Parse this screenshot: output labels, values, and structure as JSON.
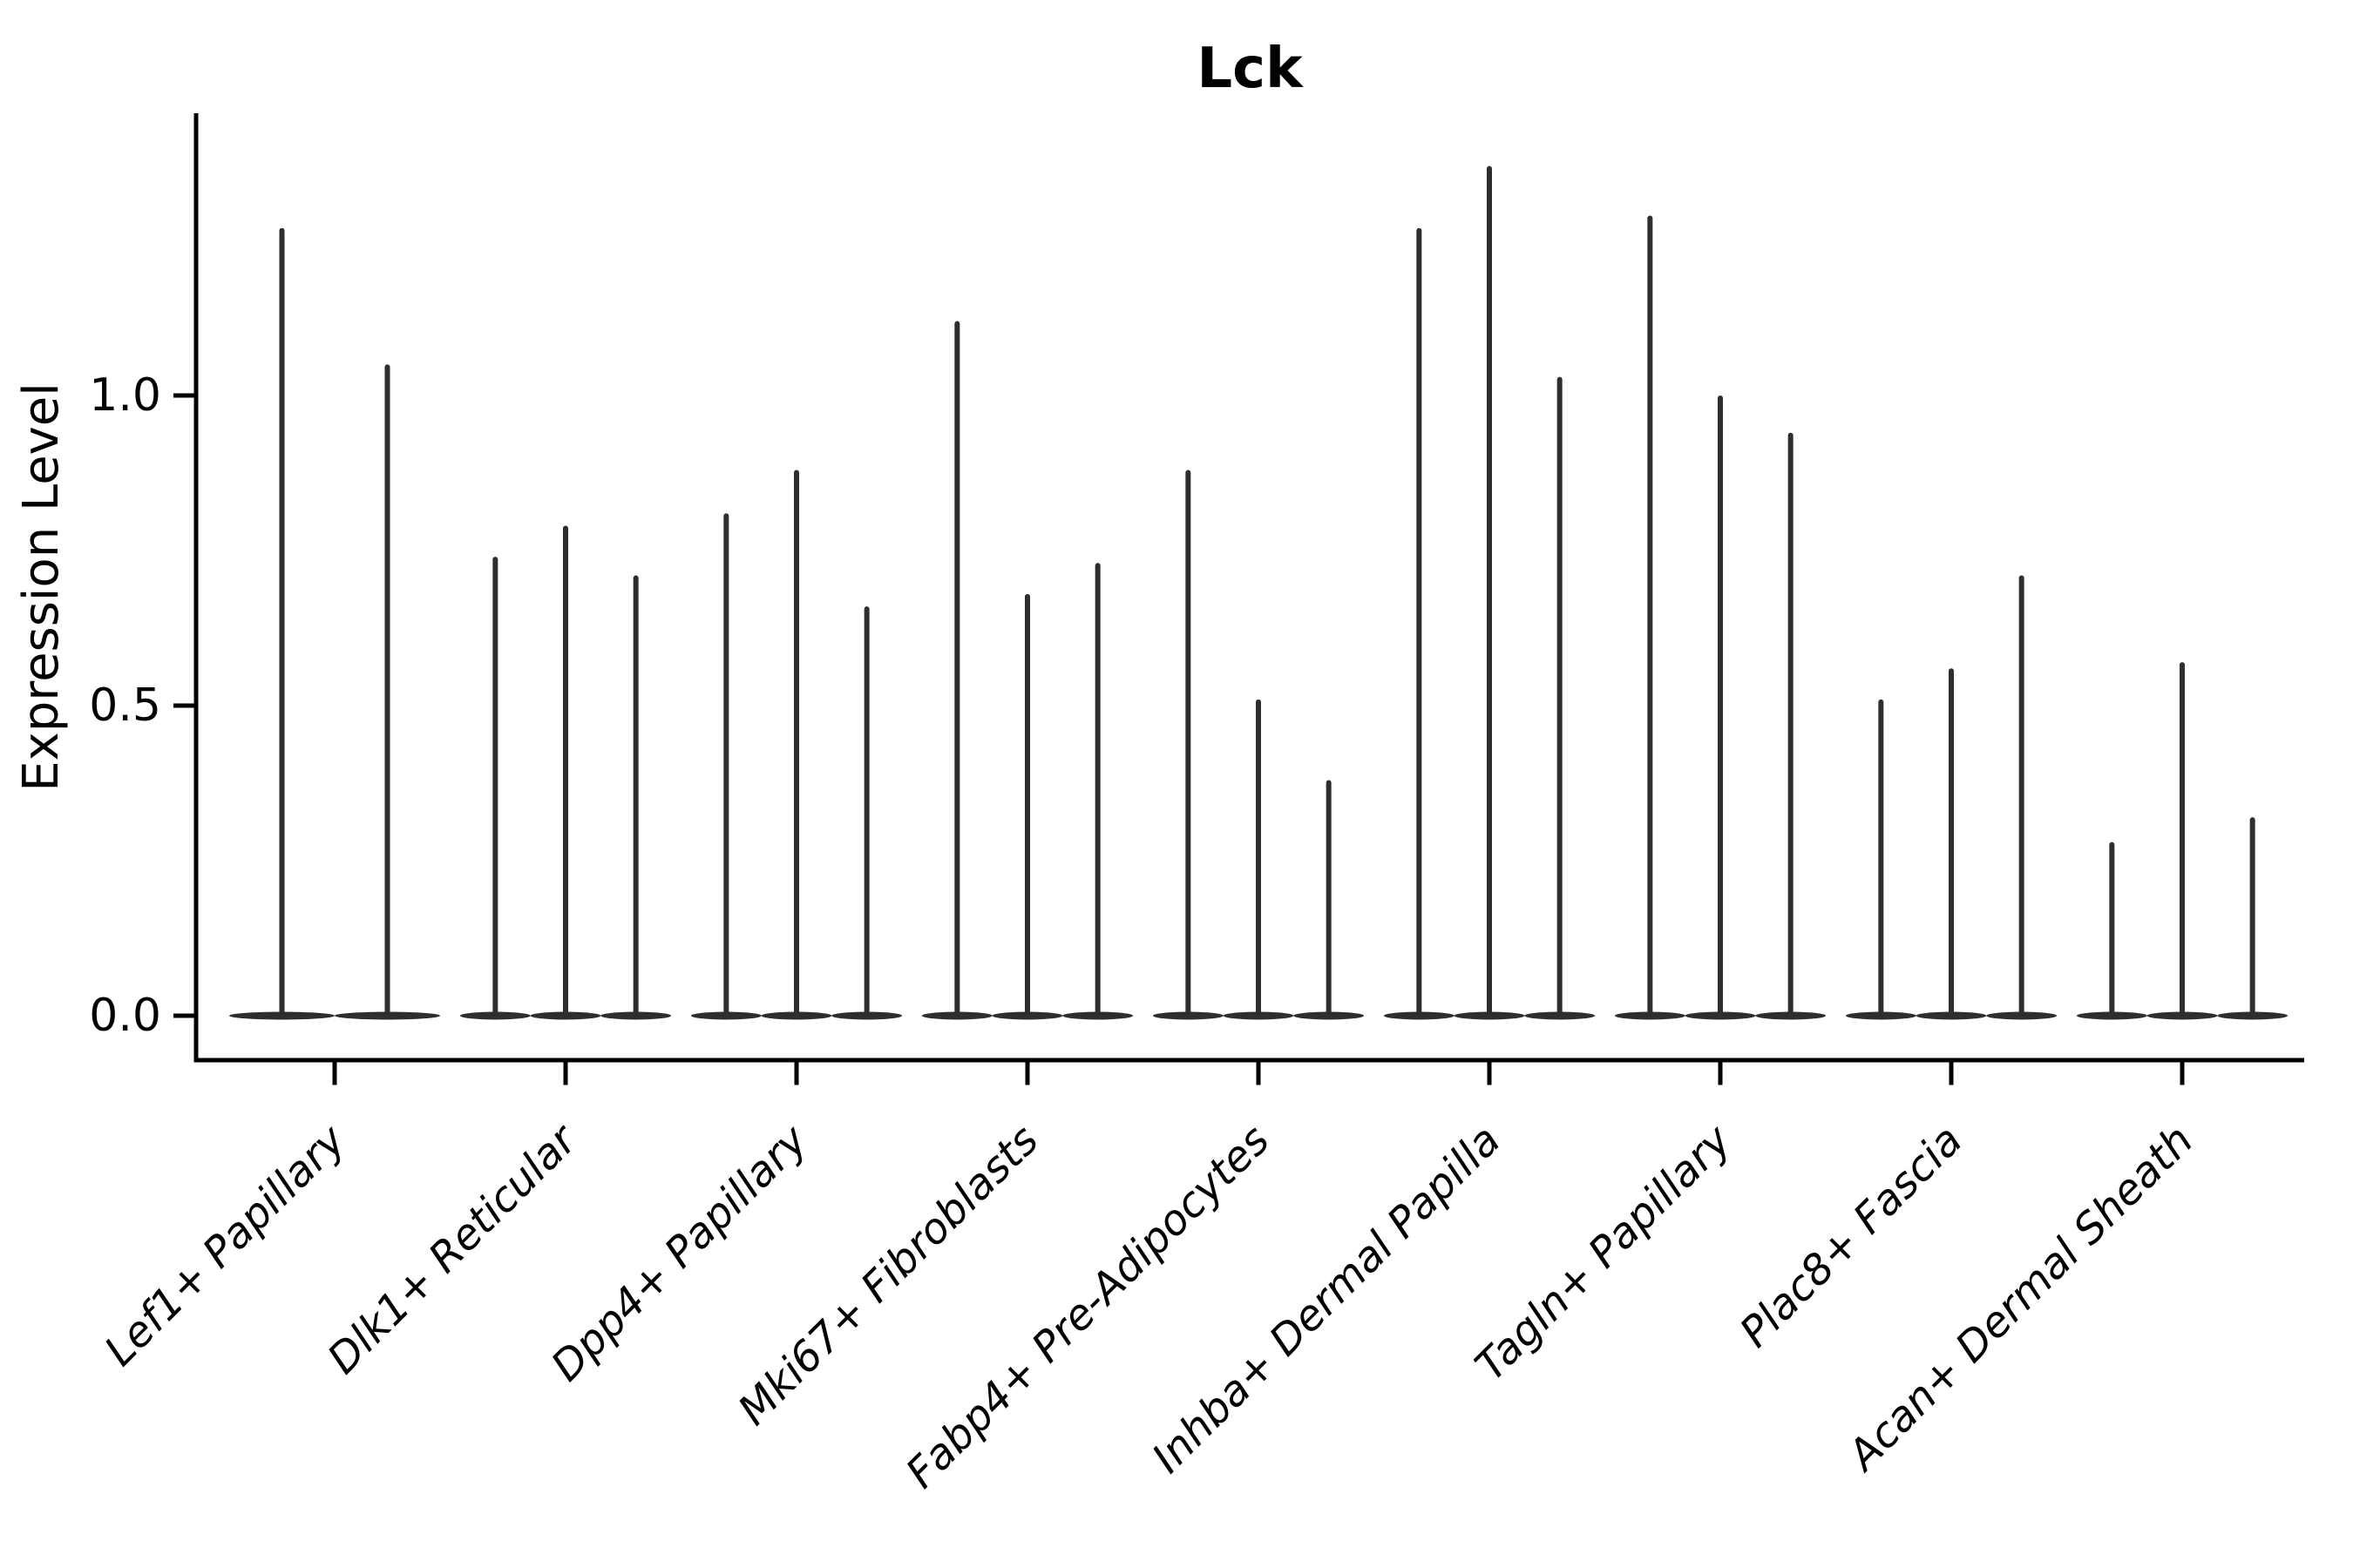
{
  "chart_data": {
    "type": "violin",
    "title": "Lck",
    "xlabel": "",
    "ylabel": "Expression Level",
    "grid": false,
    "legend_position": "none",
    "background_color": "#ffffff",
    "ylim": [
      -0.07,
      1.46
    ],
    "yticks": [
      {
        "value": 0.0,
        "label": "0.0"
      },
      {
        "value": 0.5,
        "label": "0.5"
      },
      {
        "value": 1.0,
        "label": "1.0"
      }
    ],
    "categories": [
      "Lef1+ Papillary",
      "Dlk1+ Reticular",
      "Dpp4+ Papillary",
      "Mki67+ Fibroblasts",
      "Fabp4+ Pre-Adipocytes",
      "Inhba+ Dermal Papilla",
      "Tagln+ Papillary",
      "Plac8+ Fascia",
      "Acan+ Dermal Sheath"
    ],
    "groups": [
      {
        "category": "Lef1+ Papillary",
        "violin_max": [
          1.27,
          1.05
        ]
      },
      {
        "category": "Dlk1+ Reticular",
        "violin_max": [
          0.74,
          0.79,
          0.71
        ]
      },
      {
        "category": "Dpp4+ Papillary",
        "violin_max": [
          0.81,
          0.88,
          0.66
        ]
      },
      {
        "category": "Mki67+ Fibroblasts",
        "violin_max": [
          1.12,
          0.68,
          0.73
        ]
      },
      {
        "category": "Fabp4+ Pre-Adipocytes",
        "violin_max": [
          0.88,
          0.51,
          0.38
        ]
      },
      {
        "category": "Inhba+ Dermal Papilla",
        "violin_max": [
          1.27,
          1.37,
          1.03
        ]
      },
      {
        "category": "Tagln+ Papillary",
        "violin_max": [
          1.29,
          1.0,
          0.94
        ]
      },
      {
        "category": "Plac8+ Fascia",
        "violin_max": [
          0.51,
          0.56,
          0.71
        ]
      },
      {
        "category": "Acan+ Dermal Sheath",
        "violin_max": [
          0.28,
          0.57,
          0.32
        ]
      }
    ],
    "violin_baseline_value": 0.0,
    "colors": {
      "violin": "#2e2e2e",
      "axis": "#000000",
      "text": "#000000",
      "accent": "#2e2e2e"
    }
  }
}
